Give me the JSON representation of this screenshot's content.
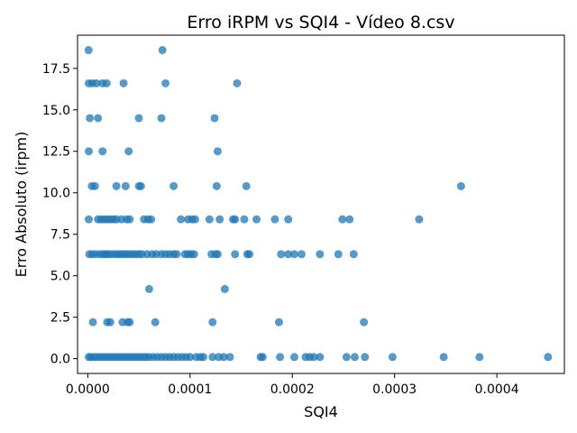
{
  "chart_data": {
    "type": "scatter",
    "title": "Erro iRPM vs SQI4 - Vídeo 8.csv",
    "xlabel": "SQI4",
    "ylabel": "Erro Absoluto (irpm)",
    "xlim": [
      -1e-05,
      0.000466
    ],
    "ylim": [
      -0.89,
      19.5
    ],
    "xticks": [
      0,
      0.0001,
      0.0002,
      0.0003,
      0.0004
    ],
    "xtick_labels": [
      "0.0000",
      "0.0001",
      "0.0002",
      "0.0003",
      "0.0004"
    ],
    "yticks": [
      0,
      2.5,
      5,
      7.5,
      10,
      12.5,
      15,
      17.5
    ],
    "ytick_labels": [
      "0.0",
      "2.5",
      "5.0",
      "7.5",
      "10.0",
      "12.5",
      "15.0",
      "17.5"
    ],
    "grid": false,
    "marker_color": "#1f77b4",
    "points": [
      [
        8e-07,
        18.6
      ],
      [
        7.3e-05,
        18.6
      ],
      [
        1e-06,
        16.6
      ],
      [
        4.5e-06,
        16.6
      ],
      [
        8.5e-06,
        16.6
      ],
      [
        1.45e-05,
        16.6
      ],
      [
        1.85e-05,
        16.6
      ],
      [
        3.5e-05,
        16.6
      ],
      [
        7.6e-05,
        16.6
      ],
      [
        0.000146,
        16.6
      ],
      [
        2e-06,
        14.5
      ],
      [
        1e-05,
        14.5
      ],
      [
        5e-05,
        14.5
      ],
      [
        7.2e-05,
        14.5
      ],
      [
        0.000124,
        14.5
      ],
      [
        1e-06,
        12.5
      ],
      [
        1.45e-05,
        12.5
      ],
      [
        4e-05,
        12.5
      ],
      [
        0.000127,
        12.5
      ],
      [
        4e-06,
        10.4
      ],
      [
        7e-06,
        10.4
      ],
      [
        2.8e-05,
        10.4
      ],
      [
        3.7e-05,
        10.4
      ],
      [
        5e-05,
        10.4
      ],
      [
        5.2e-05,
        10.4
      ],
      [
        8.4e-05,
        10.4
      ],
      [
        0.000126,
        10.4
      ],
      [
        0.000155,
        10.4
      ],
      [
        0.000365,
        10.4
      ],
      [
        1e-06,
        8.4
      ],
      [
        1e-05,
        8.4
      ],
      [
        1.3e-05,
        8.4
      ],
      [
        1.6e-05,
        8.4
      ],
      [
        1.9e-05,
        8.4
      ],
      [
        2.2e-05,
        8.4
      ],
      [
        2.5e-05,
        8.4
      ],
      [
        2.8e-05,
        8.4
      ],
      [
        3.3e-05,
        8.4
      ],
      [
        3.8e-05,
        8.4
      ],
      [
        4.1e-05,
        8.4
      ],
      [
        5.5e-05,
        8.4
      ],
      [
        5.9e-05,
        8.4
      ],
      [
        6.2e-05,
        8.4
      ],
      [
        9.1e-05,
        8.4
      ],
      [
        9.8e-05,
        8.4
      ],
      [
        0.000102,
        8.4
      ],
      [
        0.000105,
        8.4
      ],
      [
        0.000119,
        8.4
      ],
      [
        0.000129,
        8.4
      ],
      [
        0.000142,
        8.4
      ],
      [
        0.000144,
        8.4
      ],
      [
        0.000153,
        8.4
      ],
      [
        0.000165,
        8.4
      ],
      [
        0.000183,
        8.4
      ],
      [
        0.000196,
        8.4
      ],
      [
        0.000249,
        8.4
      ],
      [
        0.000256,
        8.4
      ],
      [
        0.000324,
        8.4
      ],
      [
        1.5e-06,
        6.3
      ],
      [
        4.5e-06,
        6.3
      ],
      [
        8e-06,
        6.3
      ],
      [
        1.2e-05,
        6.3
      ],
      [
        1.5e-05,
        6.3
      ],
      [
        1.75e-05,
        6.3
      ],
      [
        2e-05,
        6.3
      ],
      [
        2.3e-05,
        6.3
      ],
      [
        2.65e-05,
        6.3
      ],
      [
        2.95e-05,
        6.3
      ],
      [
        3.25e-05,
        6.3
      ],
      [
        3.5e-05,
        6.3
      ],
      [
        3.8e-05,
        6.3
      ],
      [
        4.1e-05,
        6.3
      ],
      [
        4.4e-05,
        6.3
      ],
      [
        4.7e-05,
        6.3
      ],
      [
        5e-05,
        6.3
      ],
      [
        5.3e-05,
        6.3
      ],
      [
        5.8e-05,
        6.3
      ],
      [
        6.3e-05,
        6.3
      ],
      [
        6.7e-05,
        6.3
      ],
      [
        7.2e-05,
        6.3
      ],
      [
        7.6e-05,
        6.3
      ],
      [
        8e-05,
        6.3
      ],
      [
        8.4e-05,
        6.3
      ],
      [
        8.7e-05,
        6.3
      ],
      [
        9.5e-05,
        6.3
      ],
      [
        9.8e-05,
        6.3
      ],
      [
        0.000101,
        6.3
      ],
      [
        0.000104,
        6.3
      ],
      [
        0.000121,
        6.3
      ],
      [
        0.000125,
        6.3
      ],
      [
        0.000127,
        6.3
      ],
      [
        0.000144,
        6.3
      ],
      [
        0.000156,
        6.3
      ],
      [
        0.000158,
        6.3
      ],
      [
        0.000189,
        6.3
      ],
      [
        0.000196,
        6.3
      ],
      [
        0.000202,
        6.3
      ],
      [
        0.000209,
        6.3
      ],
      [
        0.000227,
        6.3
      ],
      [
        0.000245,
        6.3
      ],
      [
        0.00026,
        6.3
      ],
      [
        6e-05,
        4.2
      ],
      [
        0.000134,
        4.2
      ],
      [
        5e-06,
        2.2
      ],
      [
        1.9e-05,
        2.2
      ],
      [
        2.2e-05,
        2.2
      ],
      [
        3.4e-05,
        2.2
      ],
      [
        3.9e-05,
        2.2
      ],
      [
        4.1e-05,
        2.2
      ],
      [
        6.6e-05,
        2.2
      ],
      [
        0.000122,
        2.2
      ],
      [
        0.000187,
        2.2
      ],
      [
        0.00027,
        2.2
      ],
      [
        1e-06,
        0.1
      ],
      [
        3e-06,
        0.1
      ],
      [
        6e-06,
        0.1
      ],
      [
        9e-06,
        0.1
      ],
      [
        1.2e-05,
        0.1
      ],
      [
        1.5e-05,
        0.1
      ],
      [
        1.8e-05,
        0.1
      ],
      [
        2.1e-05,
        0.1
      ],
      [
        2.4e-05,
        0.1
      ],
      [
        2.7e-05,
        0.1
      ],
      [
        3e-05,
        0.1
      ],
      [
        3.3e-05,
        0.1
      ],
      [
        3.6e-05,
        0.1
      ],
      [
        3.9e-05,
        0.1
      ],
      [
        4.2e-05,
        0.1
      ],
      [
        4.5e-05,
        0.1
      ],
      [
        4.8e-05,
        0.1
      ],
      [
        5.1e-05,
        0.1
      ],
      [
        5.4e-05,
        0.1
      ],
      [
        5.7e-05,
        0.1
      ],
      [
        6e-05,
        0.1
      ],
      [
        6.4e-05,
        0.1
      ],
      [
        6.8e-05,
        0.1
      ],
      [
        7.2e-05,
        0.1
      ],
      [
        7.6e-05,
        0.1
      ],
      [
        8e-05,
        0.1
      ],
      [
        8.4e-05,
        0.1
      ],
      [
        8.8e-05,
        0.1
      ],
      [
        9.2e-05,
        0.1
      ],
      [
        9.6e-05,
        0.1
      ],
      [
        0.0001,
        0.1
      ],
      [
        0.000106,
        0.1
      ],
      [
        0.00011,
        0.1
      ],
      [
        0.000113,
        0.1
      ],
      [
        0.000122,
        0.1
      ],
      [
        0.000128,
        0.1
      ],
      [
        0.000133,
        0.1
      ],
      [
        0.000139,
        0.1
      ],
      [
        0.000169,
        0.1
      ],
      [
        0.000171,
        0.1
      ],
      [
        0.000188,
        0.1
      ],
      [
        0.000202,
        0.1
      ],
      [
        0.000213,
        0.1
      ],
      [
        0.000217,
        0.1
      ],
      [
        0.000221,
        0.1
      ],
      [
        0.000227,
        0.1
      ],
      [
        0.000253,
        0.1
      ],
      [
        0.000261,
        0.1
      ],
      [
        0.000271,
        0.1
      ],
      [
        0.000298,
        0.1
      ],
      [
        0.000348,
        0.1
      ],
      [
        0.000383,
        0.1
      ],
      [
        0.00045,
        0.1
      ]
    ]
  }
}
